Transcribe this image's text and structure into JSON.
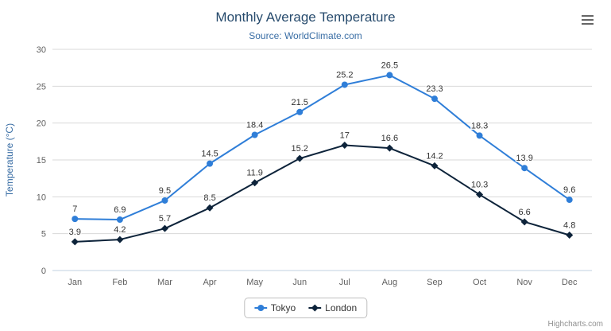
{
  "credits": "Highcharts.com",
  "export_menu": {
    "icon": "hamburger-icon"
  },
  "chart_data": {
    "type": "line",
    "title": "Monthly Average Temperature",
    "subtitle": "Source: WorldClimate.com",
    "categories": [
      "Jan",
      "Feb",
      "Mar",
      "Apr",
      "May",
      "Jun",
      "Jul",
      "Aug",
      "Sep",
      "Oct",
      "Nov",
      "Dec"
    ],
    "series": [
      {
        "name": "Tokyo",
        "color": "#2f7ed8",
        "marker": "circle",
        "values": [
          7,
          6.9,
          9.5,
          14.5,
          18.4,
          21.5,
          25.2,
          26.5,
          23.3,
          18.3,
          13.9,
          9.6
        ]
      },
      {
        "name": "London",
        "color": "#0d233a",
        "marker": "diamond",
        "values": [
          3.9,
          4.2,
          5.7,
          8.5,
          11.9,
          15.2,
          17,
          16.6,
          14.2,
          10.3,
          6.6,
          4.8
        ]
      }
    ],
    "xlabel": "",
    "ylabel": "Temperature (°C)",
    "ylim": [
      0,
      30
    ],
    "yticks": [
      0,
      5,
      10,
      15,
      20,
      25,
      30
    ],
    "grid": true,
    "data_labels": true,
    "legend_position": "bottom",
    "colors": {
      "title": "#274b6d",
      "subtitle": "#3a6ea5",
      "axis_title": "#3a6ea5",
      "axis_labels": "#606060",
      "gridline": "#d8d8d8",
      "axis_line": "#c0d0e0",
      "data_label": "#333333",
      "legend_text": "#333333"
    }
  }
}
